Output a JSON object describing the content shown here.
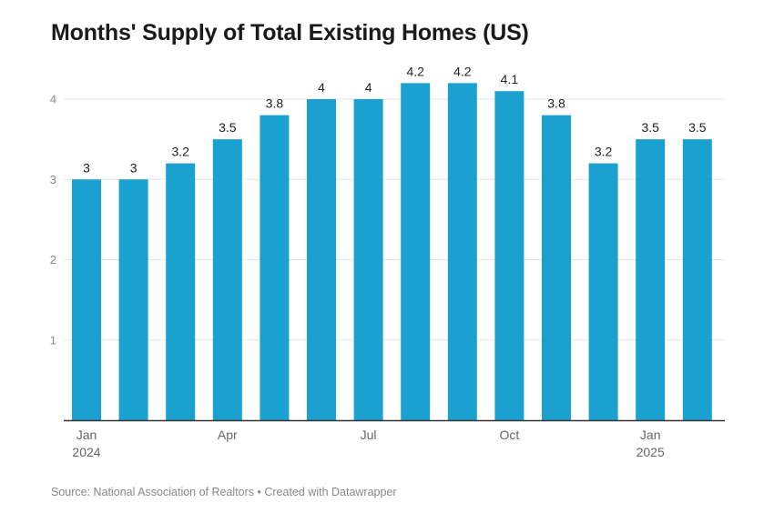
{
  "chart_data": {
    "type": "bar",
    "title": "Months' Supply of Total Existing Homes (US)",
    "categories": [
      "Jan 2024",
      "Feb 2024",
      "Mar 2024",
      "Apr 2024",
      "May 2024",
      "Jun 2024",
      "Jul 2024",
      "Aug 2024",
      "Sep 2024",
      "Oct 2024",
      "Nov 2024",
      "Dec 2024",
      "Jan 2025",
      "Feb 2025"
    ],
    "values": [
      3,
      3,
      3.2,
      3.5,
      3.8,
      4,
      4,
      4.2,
      4.2,
      4.1,
      3.8,
      3.2,
      3.5,
      3.5
    ],
    "data_labels": [
      "3",
      "3",
      "3.2",
      "3.5",
      "3.8",
      "4",
      "4",
      "4.2",
      "4.2",
      "4.1",
      "3.8",
      "3.2",
      "3.5",
      "3.5"
    ],
    "x_tick_labels": [
      {
        "index": 0,
        "lines": [
          "Jan",
          "2024"
        ]
      },
      {
        "index": 3,
        "lines": [
          "Apr"
        ]
      },
      {
        "index": 6,
        "lines": [
          "Jul"
        ]
      },
      {
        "index": 9,
        "lines": [
          "Oct"
        ]
      },
      {
        "index": 12,
        "lines": [
          "Jan",
          "2025"
        ]
      }
    ],
    "y_ticks": [
      "1",
      "2",
      "3",
      "4"
    ],
    "xlabel": "",
    "ylabel": "",
    "ylim": [
      0,
      4.4
    ],
    "grid": true,
    "bar_color": "#1ba1d0"
  },
  "footer": {
    "source": "Source: National Association of Realtors • Created with Datawrapper"
  }
}
